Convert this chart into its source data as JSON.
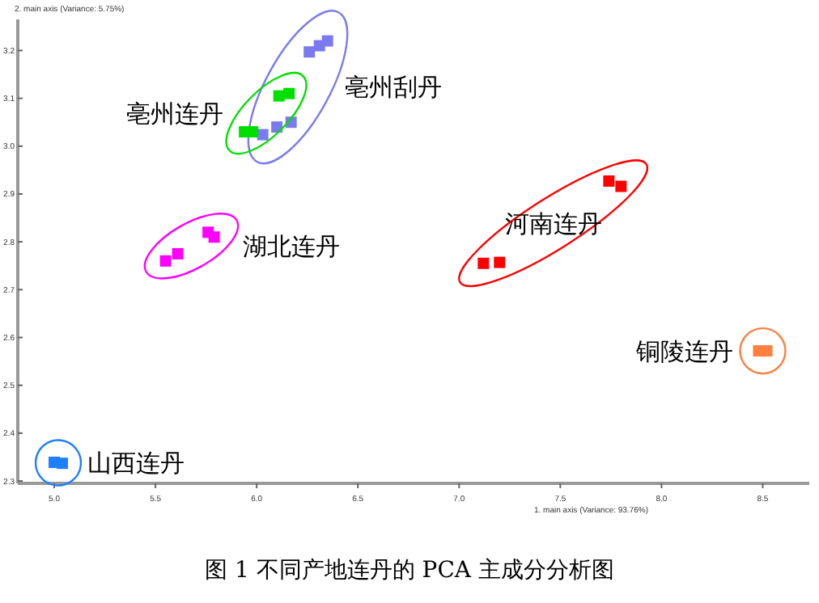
{
  "chart_data": {
    "type": "scatter",
    "xlabel": "1. main axis (Variance: 93.76%)",
    "ylabel": "2. main axis (Variance: 5.75%)",
    "marker": "square",
    "xlim": [
      4.82,
      8.73
    ],
    "ylim": [
      2.295,
      3.265
    ],
    "xticks": [
      {
        "value": 5,
        "label": "5.0"
      },
      {
        "value": 5.5,
        "label": "5.5"
      },
      {
        "value": 6,
        "label": "6.0"
      },
      {
        "value": 6.5,
        "label": "6.5"
      },
      {
        "value": 7,
        "label": "7.0"
      },
      {
        "value": 7.5,
        "label": "7.5"
      },
      {
        "value": 8,
        "label": "8.0"
      },
      {
        "value": 8.5,
        "label": "8.5"
      }
    ],
    "yticks": [
      2.3,
      2.4,
      2.5,
      2.6,
      2.7,
      2.8,
      2.9,
      {
        "value": 3,
        "label": "3.0"
      },
      3.1,
      3.2
    ],
    "series": [
      {
        "name": "亳州刮丹",
        "color": "#7b7bef",
        "x": [
          6.03,
          6.1,
          6.17,
          6.26,
          6.31,
          6.35
        ],
        "values": [
          3.024,
          3.04,
          3.05,
          3.197,
          3.21,
          3.22
        ]
      },
      {
        "name": "亳州连丹",
        "color": "#00e000",
        "x": [
          5.94,
          5.98,
          6.11,
          6.16
        ],
        "values": [
          3.03,
          3.03,
          3.105,
          3.11
        ]
      },
      {
        "name": "湖北连丹",
        "color": "#ff00ff",
        "x": [
          5.55,
          5.61,
          5.76,
          5.79
        ],
        "values": [
          2.76,
          2.775,
          2.82,
          2.81
        ]
      },
      {
        "name": "河南连丹",
        "color": "#ff0000",
        "x": [
          7.12,
          7.2,
          7.74,
          7.8
        ],
        "values": [
          2.755,
          2.757,
          2.927,
          2.916
        ]
      },
      {
        "name": "铜陵连丹",
        "color": "#ff7f3f",
        "x": [
          8.48,
          8.52
        ],
        "values": [
          2.572,
          2.572
        ]
      },
      {
        "name": "山西连丹",
        "color": "#1e7fff",
        "x": [
          5.0,
          5.04
        ],
        "values": [
          2.339,
          2.337
        ]
      }
    ],
    "annotations": [
      "图 1 不同产地连丹的 PCA 主成分分析图"
    ]
  }
}
